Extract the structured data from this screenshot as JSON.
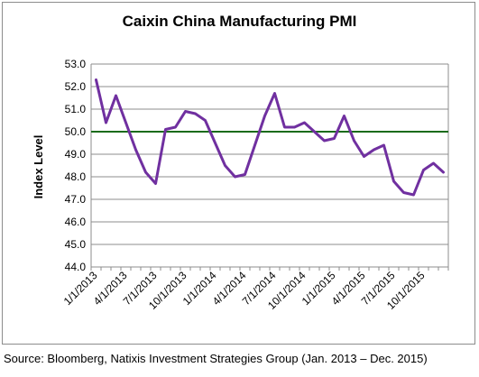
{
  "source_note": "Source: Bloomberg, Natixis Investment Strategies Group (Jan. 2013 – Dec. 2015)",
  "chart_data": {
    "type": "line",
    "title": "Caixin China Manufacturing PMI",
    "xlabel": "",
    "ylabel": "Index Level",
    "ylim": [
      44.0,
      53.0
    ],
    "ytick_labels": [
      "44.0",
      "45.0",
      "46.0",
      "47.0",
      "48.0",
      "49.0",
      "50.0",
      "51.0",
      "52.0",
      "53.0"
    ],
    "yticks": [
      44,
      45,
      46,
      47,
      48,
      49,
      50,
      51,
      52,
      53
    ],
    "xtick_labels": [
      "1/1/2013",
      "4/1/2013",
      "7/1/2013",
      "10/1/2013",
      "1/1/2014",
      "4/1/2014",
      "7/1/2014",
      "10/1/2014",
      "1/1/2015",
      "4/1/2015",
      "7/1/2015",
      "10/1/2015"
    ],
    "grid": true,
    "x": [
      "1/1/2013",
      "2/1/2013",
      "3/1/2013",
      "4/1/2013",
      "5/1/2013",
      "6/1/2013",
      "7/1/2013",
      "8/1/2013",
      "9/1/2013",
      "10/1/2013",
      "11/1/2013",
      "12/1/2013",
      "1/1/2014",
      "2/1/2014",
      "3/1/2014",
      "4/1/2014",
      "5/1/2014",
      "6/1/2014",
      "7/1/2014",
      "8/1/2014",
      "9/1/2014",
      "10/1/2014",
      "11/1/2014",
      "12/1/2014",
      "1/1/2015",
      "2/1/2015",
      "3/1/2015",
      "4/1/2015",
      "5/1/2015",
      "6/1/2015",
      "7/1/2015",
      "8/1/2015",
      "9/1/2015",
      "10/1/2015",
      "11/1/2015",
      "12/1/2015"
    ],
    "series": [
      {
        "color": "#7030a0",
        "values": [
          52.3,
          50.4,
          51.6,
          50.4,
          49.2,
          48.2,
          47.7,
          50.1,
          50.2,
          50.9,
          50.8,
          50.5,
          49.5,
          48.5,
          48.0,
          48.1,
          49.4,
          50.7,
          51.7,
          50.2,
          50.2,
          50.4,
          50.0,
          49.6,
          49.7,
          50.7,
          49.6,
          48.9,
          49.2,
          49.4,
          47.8,
          47.3,
          47.2,
          48.3,
          48.6,
          48.2
        ]
      }
    ],
    "reference_line": {
      "y": 50.0,
      "color": "#1a6b1a"
    }
  }
}
